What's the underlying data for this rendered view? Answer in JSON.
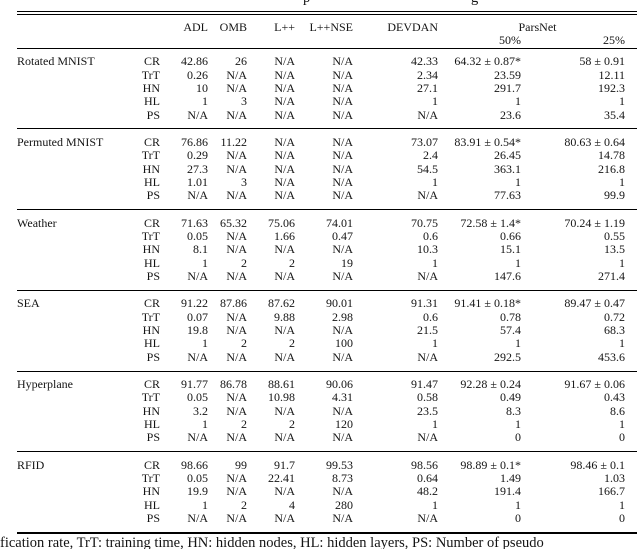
{
  "figure": {
    "top_caption_fragments": [
      "p",
      "g"
    ],
    "bottom_caption": "fication rate, TrT: training time, HN: hidden nodes, HL: hidden layers, PS: Number of pseudo"
  },
  "table": {
    "methods": [
      "ADL",
      "OMB",
      "L++",
      "L++NSE",
      "DEVDAN"
    ],
    "parsnet_label": "ParsNet",
    "parsnet_sub": [
      "50%",
      "25%"
    ],
    "sections": [
      {
        "dataset": "Rotated MNIST",
        "rows": [
          {
            "metric": "CR",
            "values": [
              "42.86",
              "26",
              "N/A",
              "N/A",
              "42.33",
              "64.32 ± 0.87*",
              "58 ± 0.91"
            ],
            "bold": 5
          },
          {
            "metric": "TrT",
            "values": [
              "0.26",
              "N/A",
              "N/A",
              "N/A",
              "2.34",
              "23.59",
              "12.11"
            ]
          },
          {
            "metric": "HN",
            "values": [
              "10",
              "N/A",
              "N/A",
              "N/A",
              "27.1",
              "291.7",
              "192.3"
            ]
          },
          {
            "metric": "HL",
            "values": [
              "1",
              "3",
              "N/A",
              "N/A",
              "1",
              "1",
              "1"
            ]
          },
          {
            "metric": "PS",
            "values": [
              "N/A",
              "N/A",
              "N/A",
              "N/A",
              "N/A",
              "23.6",
              "35.4"
            ]
          }
        ]
      },
      {
        "dataset": "Permuted MNIST",
        "rows": [
          {
            "metric": "CR",
            "values": [
              "76.86",
              "11.22",
              "N/A",
              "N/A",
              "73.07",
              "83.91 ± 0.54*",
              "80.63 ± 0.64"
            ],
            "bold": 5
          },
          {
            "metric": "TrT",
            "values": [
              "0.29",
              "N/A",
              "N/A",
              "N/A",
              "2.4",
              "26.45",
              "14.78"
            ]
          },
          {
            "metric": "HN",
            "values": [
              "27.3",
              "N/A",
              "N/A",
              "N/A",
              "54.5",
              "363.1",
              "216.8"
            ]
          },
          {
            "metric": "HL",
            "values": [
              "1.01",
              "3",
              "N/A",
              "N/A",
              "1",
              "1",
              "1"
            ]
          },
          {
            "metric": "PS",
            "values": [
              "N/A",
              "N/A",
              "N/A",
              "N/A",
              "N/A",
              "77.63",
              "99.9"
            ]
          }
        ]
      },
      {
        "dataset": "Weather",
        "rows": [
          {
            "metric": "CR",
            "values": [
              "71.63",
              "65.32",
              "75.06",
              "74.01",
              "70.75",
              "72.58 ± 1.4*",
              "70.24 ± 1.19"
            ],
            "bold": 2
          },
          {
            "metric": "TrT",
            "values": [
              "0.05",
              "N/A",
              "1.66",
              "0.47",
              "0.6",
              "0.66",
              "0.55"
            ]
          },
          {
            "metric": "HN",
            "values": [
              "8.1",
              "N/A",
              "N/A",
              "N/A",
              "10.3",
              "15.1",
              "13.5"
            ]
          },
          {
            "metric": "HL",
            "values": [
              "1",
              "2",
              "2",
              "19",
              "1",
              "1",
              "1"
            ]
          },
          {
            "metric": "PS",
            "values": [
              "N/A",
              "N/A",
              "N/A",
              "N/A",
              "N/A",
              "147.6",
              "271.4"
            ]
          }
        ]
      },
      {
        "dataset": "SEA",
        "rows": [
          {
            "metric": "CR",
            "values": [
              "91.22",
              "87.86",
              "87.62",
              "90.01",
              "91.31",
              "91.41 ± 0.18*",
              "89.47 ± 0.47"
            ],
            "bold": 5
          },
          {
            "metric": "TrT",
            "values": [
              "0.07",
              "N/A",
              "9.88",
              "2.98",
              "0.6",
              "0.78",
              "0.72"
            ]
          },
          {
            "metric": "HN",
            "values": [
              "19.8",
              "N/A",
              "N/A",
              "N/A",
              "21.5",
              "57.4",
              "68.3"
            ]
          },
          {
            "metric": "HL",
            "values": [
              "1",
              "2",
              "2",
              "100",
              "1",
              "1",
              "1"
            ]
          },
          {
            "metric": "PS",
            "values": [
              "N/A",
              "N/A",
              "N/A",
              "N/A",
              "N/A",
              "292.5",
              "453.6"
            ]
          }
        ]
      },
      {
        "dataset": "Hyperplane",
        "rows": [
          {
            "metric": "CR",
            "values": [
              "91.77",
              "86.78",
              "88.61",
              "90.06",
              "91.47",
              "92.28 ± 0.24",
              "91.67 ± 0.06"
            ],
            "bold": 5
          },
          {
            "metric": "TrT",
            "values": [
              "0.05",
              "N/A",
              "10.98",
              "4.31",
              "0.58",
              "0.49",
              "0.43"
            ]
          },
          {
            "metric": "HN",
            "values": [
              "3.2",
              "N/A",
              "N/A",
              "N/A",
              "23.5",
              "8.3",
              "8.6"
            ]
          },
          {
            "metric": "HL",
            "values": [
              "1",
              "2",
              "2",
              "120",
              "1",
              "1",
              "1"
            ]
          },
          {
            "metric": "PS",
            "values": [
              "N/A",
              "N/A",
              "N/A",
              "N/A",
              "N/A",
              "0",
              "0"
            ]
          }
        ]
      },
      {
        "dataset": "RFID",
        "rows": [
          {
            "metric": "CR",
            "values": [
              "98.66",
              "99",
              "91.7",
              "99.53",
              "98.56",
              "98.89 ± 0.1*",
              "98.46 ± 0.1"
            ],
            "bold": 3
          },
          {
            "metric": "TrT",
            "values": [
              "0.05",
              "N/A",
              "22.41",
              "8.73",
              "0.64",
              "1.49",
              "1.03"
            ]
          },
          {
            "metric": "HN",
            "values": [
              "19.9",
              "N/A",
              "N/A",
              "N/A",
              "48.2",
              "191.4",
              "166.7"
            ]
          },
          {
            "metric": "HL",
            "values": [
              "1",
              "2",
              "4",
              "280",
              "1",
              "1",
              "1"
            ]
          },
          {
            "metric": "PS",
            "values": [
              "N/A",
              "N/A",
              "N/A",
              "N/A",
              "N/A",
              "0",
              "0"
            ]
          }
        ]
      }
    ]
  }
}
